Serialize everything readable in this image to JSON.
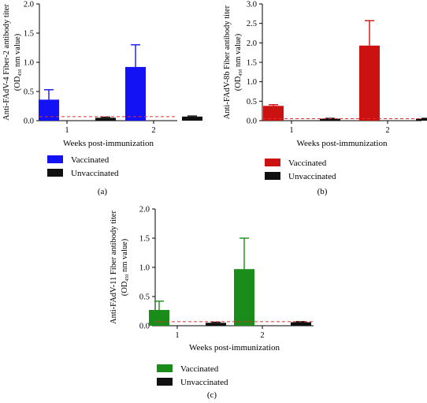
{
  "chart_data": [
    {
      "type": "bar",
      "panel_label": "(a)",
      "categories": [
        "1",
        "2"
      ],
      "xlabel": "Weeks post-immunization",
      "ylabel_main": "Anti-FAdV-4 Fiber-2 antibody titer",
      "ylabel_sub_pre": "(OD",
      "ylabel_sub_subscript": "450",
      "ylabel_sub_post": " nm value)",
      "ylim": [
        0,
        2.0
      ],
      "yticks": [
        "0.0",
        "0.5",
        "1.0",
        "1.5",
        "2.0"
      ],
      "threshold": 0.07,
      "series": [
        {
          "name": "Vaccinated",
          "color": "#1212f5",
          "values": [
            0.36,
            0.92
          ],
          "errors": [
            0.17,
            0.38
          ]
        },
        {
          "name": "Unvaccinated",
          "color": "#111111",
          "values": [
            0.05,
            0.07
          ],
          "errors": [
            0.01,
            0.01
          ]
        }
      ]
    },
    {
      "type": "bar",
      "panel_label": "(b)",
      "categories": [
        "1",
        "2"
      ],
      "xlabel": "Weeks post-immunization",
      "ylabel_main": "Anti-FAdV-8b Fiber antibody titer",
      "ylabel_sub_pre": "(OD",
      "ylabel_sub_subscript": "450",
      "ylabel_sub_post": " nm value)",
      "ylim": [
        0,
        3.0
      ],
      "yticks": [
        "0.0",
        "0.5",
        "1.0",
        "1.5",
        "2.0",
        "2.5",
        "3.0"
      ],
      "threshold": 0.05,
      "series": [
        {
          "name": "Vaccinated",
          "color": "#cc1111",
          "values": [
            0.38,
            1.93
          ],
          "errors": [
            0.03,
            0.64
          ]
        },
        {
          "name": "Unvaccinated",
          "color": "#111111",
          "values": [
            0.05,
            0.05
          ],
          "errors": [
            0.01,
            0.01
          ]
        }
      ]
    },
    {
      "type": "bar",
      "panel_label": "(c)",
      "categories": [
        "1",
        "2"
      ],
      "xlabel": "Weeks post-immunization",
      "ylabel_main": "Anti-FAdV-11 Fiber antibody titer",
      "ylabel_sub_pre": "(OD",
      "ylabel_sub_subscript": "450",
      "ylabel_sub_post": " nm value)",
      "ylim": [
        0,
        2.0
      ],
      "yticks": [
        "0.0",
        "0.5",
        "1.0",
        "1.5",
        "2.0"
      ],
      "threshold": 0.07,
      "series": [
        {
          "name": "Vaccinated",
          "color": "#1a8c1a",
          "values": [
            0.27,
            0.97
          ],
          "errors": [
            0.15,
            0.53
          ]
        },
        {
          "name": "Unvaccinated",
          "color": "#111111",
          "values": [
            0.05,
            0.06
          ],
          "errors": [
            0.01,
            0.01
          ]
        }
      ]
    }
  ]
}
